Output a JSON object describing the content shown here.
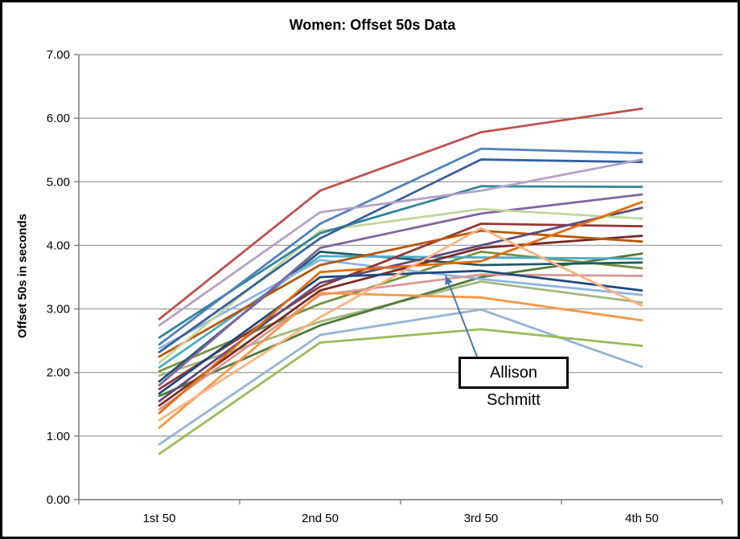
{
  "chart": {
    "title": "Women: Offset 50s Data",
    "y_axis": {
      "title": "Offset 50s in seconds",
      "tick_labels": [
        "0.00",
        "1.00",
        "2.00",
        "3.00",
        "4.00",
        "5.00",
        "6.00",
        "7.00"
      ]
    },
    "x_axis": {
      "tick_labels": [
        "1st 50",
        "2nd 50",
        "3rd 50",
        "4th 50"
      ]
    },
    "annotation": {
      "text": "Allison Schmitt"
    },
    "colors": {
      "gridline": "#A3A3A3",
      "axis": "#808080",
      "arrow": "#4876AC",
      "background": "#FFFFFF",
      "border": "#000000"
    }
  },
  "chart_data": {
    "type": "line",
    "title": "Women: Offset 50s Data",
    "xlabel": "",
    "ylabel": "Offset 50s in seconds",
    "ylim": [
      0,
      7
    ],
    "ytick_step": 1,
    "grid": true,
    "legend": "none",
    "categories": [
      "1st 50",
      "2nd 50",
      "3rd 50",
      "4th 50"
    ],
    "series": [
      {
        "name": "series-01",
        "color": "#A5B77F",
        "values": [
          1.95,
          2.8,
          3.43,
          3.1
        ]
      },
      {
        "name": "series-02",
        "color": "#4E7B3A",
        "values": [
          1.63,
          2.74,
          3.5,
          3.87
        ]
      },
      {
        "name": "series-03",
        "color": "#76923C",
        "values": [
          2.02,
          3.08,
          3.9,
          3.64
        ]
      },
      {
        "name": "series-04",
        "color": "#215968",
        "values": [
          1.86,
          3.9,
          3.69,
          3.73
        ]
      },
      {
        "name": "series-05",
        "color": "#4BACC6",
        "values": [
          2.08,
          3.83,
          3.81,
          3.79
        ]
      },
      {
        "name": "series-06",
        "color": "#8DB4E2",
        "values": [
          2.38,
          3.77,
          3.47,
          3.22
        ]
      },
      {
        "name": "series-07",
        "color": "#953735",
        "values": [
          1.74,
          3.35,
          4.34,
          4.3
        ]
      },
      {
        "name": "series-08",
        "color": "#772C2A",
        "values": [
          1.48,
          3.29,
          3.96,
          4.15
        ]
      },
      {
        "name": "series-09",
        "color": "#B65708",
        "values": [
          2.25,
          3.69,
          4.23,
          4.06
        ]
      },
      {
        "name": "series-10",
        "color": "#604A7B",
        "values": [
          1.55,
          3.41,
          4.0,
          4.59
        ]
      },
      {
        "name": "series-11",
        "color": "#8064A2",
        "values": [
          1.8,
          3.96,
          4.5,
          4.8
        ]
      },
      {
        "name": "series-12",
        "color": "#C3D69B",
        "values": [
          2.15,
          4.23,
          4.57,
          4.42
        ]
      },
      {
        "name": "series-13",
        "color": "#D99694",
        "values": [
          1.42,
          3.22,
          3.54,
          3.52
        ]
      },
      {
        "name": "Allison Schmitt",
        "color": "#1F497D",
        "values": [
          1.67,
          3.5,
          3.6,
          3.29
        ],
        "annotated": true
      },
      {
        "name": "series-15",
        "color": "#31859C",
        "values": [
          2.55,
          4.19,
          4.93,
          4.92
        ]
      },
      {
        "name": "series-16",
        "color": "#38609C",
        "values": [
          2.32,
          4.11,
          5.35,
          5.31
        ]
      },
      {
        "name": "series-17",
        "color": "#4F81BD",
        "values": [
          2.44,
          4.34,
          5.52,
          5.45
        ]
      },
      {
        "name": "series-18",
        "color": "#B2A1C7",
        "values": [
          2.74,
          4.52,
          4.86,
          5.35
        ]
      },
      {
        "name": "series-19",
        "color": "#C0504D",
        "values": [
          2.84,
          4.86,
          5.78,
          6.15
        ]
      },
      {
        "name": "series-20",
        "color": "#F79646",
        "values": [
          1.13,
          3.25,
          3.18,
          2.82
        ]
      },
      {
        "name": "series-21",
        "color": "#E46C0A",
        "values": [
          1.36,
          3.58,
          3.75,
          4.68
        ]
      },
      {
        "name": "series-22",
        "color": "#FBB381",
        "values": [
          1.25,
          2.87,
          4.27,
          3.05
        ]
      },
      {
        "name": "series-23",
        "color": "#95B3D7",
        "values": [
          0.87,
          2.59,
          2.99,
          2.09
        ]
      },
      {
        "name": "series-24",
        "color": "#9BBB59",
        "values": [
          0.72,
          2.47,
          2.68,
          2.42
        ]
      }
    ],
    "annotations": [
      {
        "text": "Allison Schmitt",
        "target_series": "Allison Schmitt",
        "between_categories": [
          "2nd 50",
          "3rd 50"
        ]
      }
    ]
  }
}
